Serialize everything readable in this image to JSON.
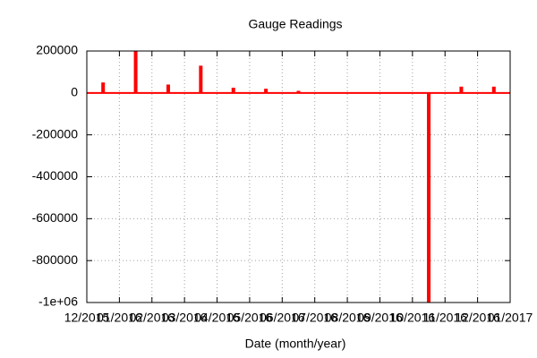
{
  "chart_data": {
    "type": "impulse",
    "title": "Gauge Readings",
    "xlabel": "Date (month/year)",
    "x": [
      "12/2015",
      "01/2016",
      "02/2016",
      "03/2016",
      "04/2016",
      "05/2016",
      "06/2016",
      "07/2016",
      "08/2016",
      "09/2016",
      "10/2016",
      "11/2016",
      "12/2016"
    ],
    "values": [
      50000,
      200000,
      40000,
      130000,
      25000,
      20000,
      10000,
      3000,
      2000,
      1000,
      -1000000,
      30000,
      30000
    ],
    "color": "#ff0000",
    "ylim": [
      -1000000,
      200000
    ],
    "yticks": [
      200000,
      0,
      -200000,
      -400000,
      -600000,
      -800000,
      {
        "value": -1000000,
        "label": "-1e+06"
      }
    ],
    "xticks": [
      "12/2015",
      "01/2016",
      "02/2016",
      "03/2016",
      "04/2016",
      "05/2016",
      "06/2016",
      "07/2016",
      "08/2016",
      "09/2016",
      "10/2016",
      "11/2016",
      "12/2016",
      "01/2017"
    ],
    "grid": true
  }
}
